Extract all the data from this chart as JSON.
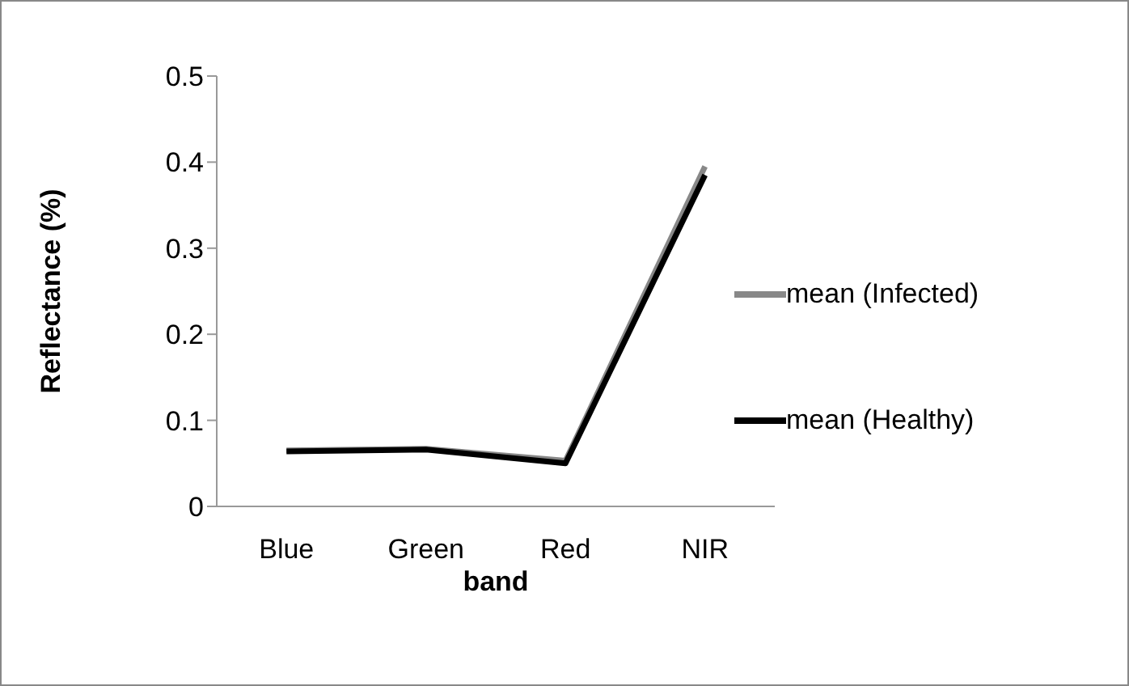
{
  "chart_data": {
    "type": "line",
    "xlabel": "band",
    "ylabel": "Reflectance (%)",
    "categories": [
      "Blue",
      "Green",
      "Red",
      "NIR"
    ],
    "series": [
      {
        "name": "mean (Infected)",
        "color": "#888888",
        "values": [
          0.065,
          0.067,
          0.053,
          0.395
        ]
      },
      {
        "name": "mean (Healthy)",
        "color": "#000000",
        "values": [
          0.064,
          0.066,
          0.05,
          0.385
        ]
      }
    ],
    "ylim": [
      0,
      0.5
    ],
    "yticks": [
      0,
      0.1,
      0.2,
      0.3,
      0.4,
      0.5
    ],
    "grid": false,
    "legend": "right",
    "marker": "none",
    "line_style": "solid"
  }
}
